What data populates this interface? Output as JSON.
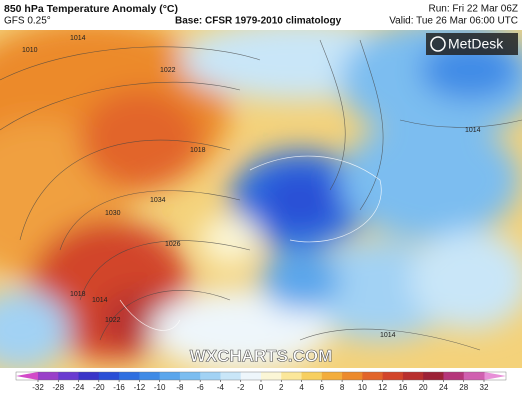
{
  "header": {
    "title": "850 hPa Temperature Anomaly (°C)",
    "model": "GFS 0.25°",
    "base": "Base: CFSR 1979-2010 climatology",
    "run": "Run: Fri 22 Mar 06Z",
    "valid": "Valid: Tue 26 Mar 06:00 UTC"
  },
  "logo": "MetDesk",
  "watermark": "WXCHARTS.COM",
  "isobar_labels": [
    "1010",
    "1014",
    "1022",
    "1018",
    "1030",
    "1034",
    "1026",
    "1018",
    "1014",
    "1022",
    "1014",
    "1014"
  ],
  "colorbar": {
    "ticks": [
      -32,
      -28,
      -24,
      -20,
      -16,
      -12,
      -10,
      -8,
      -6,
      -4,
      -2,
      0,
      2,
      4,
      6,
      8,
      10,
      12,
      16,
      20,
      24,
      28,
      32
    ],
    "colors": [
      "#d24ac8",
      "#9a3fc9",
      "#6a3bd0",
      "#3a35c8",
      "#2a4fd6",
      "#2f6fe0",
      "#3f8be6",
      "#5aa6ec",
      "#7bbdf0",
      "#a2d2f4",
      "#c9e6f8",
      "#eef6fb",
      "#fbf6d6",
      "#fbe79a",
      "#f7cf60",
      "#f3ad3c",
      "#ec8a2c",
      "#e2652a",
      "#d2452a",
      "#b8302e",
      "#9c2236",
      "#b5367a",
      "#d060b0",
      "#e890d8"
    ]
  }
}
